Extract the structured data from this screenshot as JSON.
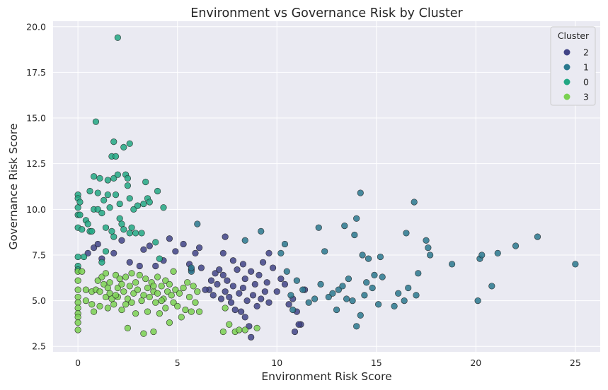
{
  "chart_data": {
    "type": "scatter",
    "title": "Environment vs Governance Risk by Cluster",
    "xlabel": "Environment Risk Score",
    "ylabel": "Governance Risk Score",
    "xlim": [
      -1.25,
      26.25
    ],
    "ylim": [
      2.2,
      20.3
    ],
    "xticks": [
      0,
      5,
      10,
      15,
      20,
      25
    ],
    "xtick_labels": [
      "0",
      "5",
      "10",
      "15",
      "20",
      "25"
    ],
    "yticks": [
      2.5,
      5.0,
      7.5,
      10.0,
      12.5,
      15.0,
      17.5,
      20.0
    ],
    "ytick_labels": [
      "2.5",
      "5.0",
      "7.5",
      "10.0",
      "12.5",
      "15.0",
      "17.5",
      "20.0"
    ],
    "grid": true,
    "background": "#eaeaf2",
    "legend": {
      "title": "Cluster",
      "position": "top-right"
    },
    "series": [
      {
        "name": "2",
        "color": "#414487",
        "points": [
          [
            0.5,
            7.6
          ],
          [
            0.8,
            7.9
          ],
          [
            1.0,
            8.1
          ],
          [
            1.2,
            7.3
          ],
          [
            1.8,
            7.6
          ],
          [
            2.2,
            8.3
          ],
          [
            2.6,
            7.1
          ],
          [
            3.1,
            6.9
          ],
          [
            3.3,
            7.8
          ],
          [
            3.6,
            8.0
          ],
          [
            3.9,
            6.9
          ],
          [
            4.3,
            7.2
          ],
          [
            4.6,
            8.4
          ],
          [
            4.9,
            7.7
          ],
          [
            5.3,
            8.1
          ],
          [
            5.6,
            7.0
          ],
          [
            5.9,
            7.6
          ],
          [
            6.2,
            6.8
          ],
          [
            6.6,
            5.6
          ],
          [
            6.8,
            5.3
          ],
          [
            6.9,
            6.5
          ],
          [
            7.0,
            5.9
          ],
          [
            7.2,
            5.1
          ],
          [
            7.3,
            6.4
          ],
          [
            7.4,
            5.5
          ],
          [
            7.5,
            6.1
          ],
          [
            7.6,
            5.2
          ],
          [
            7.7,
            4.9
          ],
          [
            7.8,
            5.8
          ],
          [
            7.9,
            4.5
          ],
          [
            8.0,
            6.7
          ],
          [
            8.1,
            5.4
          ],
          [
            8.2,
            4.4
          ],
          [
            8.3,
            5.7
          ],
          [
            8.4,
            6.2
          ],
          [
            8.5,
            5.0
          ],
          [
            8.6,
            3.6
          ],
          [
            8.7,
            6.6
          ],
          [
            8.8,
            5.3
          ],
          [
            8.9,
            5.9
          ],
          [
            9.0,
            4.7
          ],
          [
            9.1,
            6.4
          ],
          [
            9.2,
            5.1
          ],
          [
            9.3,
            7.1
          ],
          [
            9.4,
            5.5
          ],
          [
            9.5,
            6.0
          ],
          [
            9.6,
            4.9
          ],
          [
            9.8,
            6.8
          ],
          [
            10.0,
            5.5
          ],
          [
            10.2,
            6.2
          ],
          [
            10.4,
            5.9
          ],
          [
            10.6,
            4.8
          ],
          [
            10.8,
            5.1
          ],
          [
            11.0,
            4.4
          ],
          [
            11.2,
            3.7
          ],
          [
            11.4,
            5.6
          ],
          [
            10.9,
            3.3
          ],
          [
            11.1,
            3.7
          ],
          [
            8.7,
            3.0
          ],
          [
            8.4,
            4.1
          ],
          [
            6.7,
            6.1
          ],
          [
            7.1,
            6.7
          ],
          [
            7.8,
            7.2
          ],
          [
            8.3,
            7.0
          ],
          [
            9.6,
            7.6
          ],
          [
            6.1,
            7.9
          ],
          [
            7.4,
            8.5
          ],
          [
            7.3,
            7.6
          ],
          [
            5.7,
            6.7
          ],
          [
            6.4,
            5.6
          ]
        ]
      },
      {
        "name": "1",
        "color": "#2a788e",
        "points": [
          [
            5.7,
            6.6
          ],
          [
            5.7,
            6.8
          ],
          [
            6.0,
            9.2
          ],
          [
            8.4,
            8.3
          ],
          [
            9.2,
            8.8
          ],
          [
            10.2,
            7.6
          ],
          [
            10.4,
            8.1
          ],
          [
            10.5,
            6.6
          ],
          [
            10.7,
            5.3
          ],
          [
            11.0,
            6.1
          ],
          [
            11.3,
            5.6
          ],
          [
            11.6,
            4.9
          ],
          [
            11.9,
            5.1
          ],
          [
            12.1,
            9.0
          ],
          [
            12.2,
            5.9
          ],
          [
            12.4,
            7.7
          ],
          [
            12.6,
            5.2
          ],
          [
            12.8,
            5.4
          ],
          [
            13.0,
            4.5
          ],
          [
            13.1,
            5.6
          ],
          [
            13.3,
            5.8
          ],
          [
            13.4,
            9.1
          ],
          [
            13.5,
            5.1
          ],
          [
            13.6,
            6.2
          ],
          [
            13.8,
            5.0
          ],
          [
            13.9,
            8.6
          ],
          [
            14.0,
            9.5
          ],
          [
            14.2,
            10.9
          ],
          [
            14.3,
            7.5
          ],
          [
            14.4,
            5.3
          ],
          [
            14.5,
            6.0
          ],
          [
            14.6,
            7.3
          ],
          [
            14.8,
            5.7
          ],
          [
            14.9,
            6.4
          ],
          [
            15.1,
            4.8
          ],
          [
            15.2,
            7.4
          ],
          [
            15.3,
            6.3
          ],
          [
            15.9,
            4.7
          ],
          [
            16.1,
            5.4
          ],
          [
            16.4,
            5.0
          ],
          [
            16.5,
            8.7
          ],
          [
            16.6,
            5.7
          ],
          [
            16.9,
            10.4
          ],
          [
            17.0,
            5.3
          ],
          [
            17.1,
            6.5
          ],
          [
            17.5,
            8.3
          ],
          [
            17.6,
            7.9
          ],
          [
            17.7,
            7.5
          ],
          [
            18.8,
            7.0
          ],
          [
            20.1,
            5.0
          ],
          [
            20.2,
            7.3
          ],
          [
            20.3,
            7.5
          ],
          [
            20.8,
            5.8
          ],
          [
            21.1,
            7.6
          ],
          [
            22.0,
            8.0
          ],
          [
            23.1,
            8.5
          ],
          [
            25.0,
            7.0
          ],
          [
            14.0,
            3.6
          ],
          [
            14.2,
            4.2
          ],
          [
            10.8,
            4.5
          ]
        ]
      },
      {
        "name": "0",
        "color": "#22a884",
        "points": [
          [
            0.0,
            10.8
          ],
          [
            0.0,
            10.6
          ],
          [
            0.0,
            10.1
          ],
          [
            0.0,
            9.7
          ],
          [
            0.0,
            9.0
          ],
          [
            0.0,
            7.4
          ],
          [
            0.0,
            6.9
          ],
          [
            0.0,
            6.7
          ],
          [
            0.1,
            10.4
          ],
          [
            0.1,
            9.7
          ],
          [
            0.2,
            8.9
          ],
          [
            0.3,
            7.4
          ],
          [
            0.4,
            9.4
          ],
          [
            0.5,
            9.2
          ],
          [
            0.6,
            8.8
          ],
          [
            0.6,
            11.0
          ],
          [
            0.8,
            11.8
          ],
          [
            0.8,
            10.0
          ],
          [
            0.9,
            14.8
          ],
          [
            1.0,
            10.9
          ],
          [
            1.0,
            10.0
          ],
          [
            1.1,
            11.7
          ],
          [
            1.2,
            9.8
          ],
          [
            1.3,
            10.5
          ],
          [
            1.4,
            9.0
          ],
          [
            1.5,
            11.6
          ],
          [
            1.5,
            10.8
          ],
          [
            1.6,
            10.1
          ],
          [
            1.7,
            12.9
          ],
          [
            1.8,
            13.7
          ],
          [
            1.8,
            11.7
          ],
          [
            1.9,
            12.9
          ],
          [
            1.9,
            10.8
          ],
          [
            2.0,
            19.4
          ],
          [
            2.0,
            11.9
          ],
          [
            2.1,
            10.3
          ],
          [
            2.1,
            9.5
          ],
          [
            2.2,
            9.2
          ],
          [
            2.3,
            13.4
          ],
          [
            2.4,
            11.9
          ],
          [
            2.5,
            11.7
          ],
          [
            2.5,
            11.3
          ],
          [
            2.6,
            13.6
          ],
          [
            2.6,
            10.6
          ],
          [
            2.7,
            9.0
          ],
          [
            2.8,
            10.0
          ],
          [
            2.9,
            8.7
          ],
          [
            3.0,
            10.2
          ],
          [
            3.2,
            8.7
          ],
          [
            3.3,
            10.3
          ],
          [
            3.4,
            11.5
          ],
          [
            3.5,
            10.6
          ],
          [
            3.6,
            10.4
          ],
          [
            3.9,
            8.2
          ],
          [
            4.0,
            11.0
          ],
          [
            4.3,
            10.1
          ],
          [
            4.1,
            7.3
          ],
          [
            1.4,
            7.7
          ],
          [
            1.8,
            8.5
          ],
          [
            2.3,
            8.9
          ],
          [
            2.6,
            8.7
          ],
          [
            0.7,
            8.8
          ],
          [
            1.7,
            8.8
          ],
          [
            1.2,
            7.1
          ]
        ]
      },
      {
        "name": "3",
        "color": "#7ad151",
        "points": [
          [
            0.0,
            6.6
          ],
          [
            0.0,
            6.1
          ],
          [
            0.0,
            5.6
          ],
          [
            0.0,
            5.2
          ],
          [
            0.0,
            4.9
          ],
          [
            0.0,
            4.6
          ],
          [
            0.0,
            4.3
          ],
          [
            0.0,
            4.1
          ],
          [
            0.0,
            3.8
          ],
          [
            0.0,
            3.4
          ],
          [
            0.2,
            6.6
          ],
          [
            0.4,
            5.6
          ],
          [
            0.7,
            5.5
          ],
          [
            0.7,
            4.8
          ],
          [
            0.8,
            4.4
          ],
          [
            0.9,
            5.6
          ],
          [
            1.0,
            6.1
          ],
          [
            1.1,
            5.5
          ],
          [
            1.1,
            4.7
          ],
          [
            1.2,
            6.3
          ],
          [
            1.3,
            5.9
          ],
          [
            1.4,
            5.2
          ],
          [
            1.4,
            6.5
          ],
          [
            1.5,
            5.7
          ],
          [
            1.5,
            4.6
          ],
          [
            1.6,
            5.4
          ],
          [
            1.6,
            6.0
          ],
          [
            1.7,
            5.1
          ],
          [
            1.8,
            4.8
          ],
          [
            1.9,
            6.4
          ],
          [
            2.0,
            5.7
          ],
          [
            2.0,
            5.2
          ],
          [
            2.1,
            6.2
          ],
          [
            2.2,
            4.5
          ],
          [
            2.2,
            5.9
          ],
          [
            2.3,
            5.5
          ],
          [
            2.4,
            6.3
          ],
          [
            2.5,
            5.1
          ],
          [
            2.5,
            3.5
          ],
          [
            2.6,
            5.8
          ],
          [
            2.7,
            6.5
          ],
          [
            2.7,
            4.9
          ],
          [
            2.8,
            5.4
          ],
          [
            2.9,
            6.0
          ],
          [
            2.9,
            4.3
          ],
          [
            3.0,
            5.6
          ],
          [
            3.1,
            6.4
          ],
          [
            3.2,
            5.0
          ],
          [
            3.3,
            3.2
          ],
          [
            3.3,
            5.3
          ],
          [
            3.4,
            6.2
          ],
          [
            3.5,
            5.7
          ],
          [
            3.5,
            4.4
          ],
          [
            3.6,
            5.2
          ],
          [
            3.7,
            6.0
          ],
          [
            3.8,
            5.5
          ],
          [
            3.8,
            3.3
          ],
          [
            3.9,
            4.9
          ],
          [
            4.0,
            6.3
          ],
          [
            4.0,
            5.4
          ],
          [
            4.1,
            4.3
          ],
          [
            4.2,
            5.8
          ],
          [
            4.3,
            5.1
          ],
          [
            4.4,
            6.1
          ],
          [
            4.4,
            4.6
          ],
          [
            4.5,
            5.5
          ],
          [
            4.6,
            5.9
          ],
          [
            4.6,
            3.8
          ],
          [
            4.7,
            5.3
          ],
          [
            4.8,
            6.6
          ],
          [
            4.8,
            4.9
          ],
          [
            4.9,
            5.6
          ],
          [
            5.0,
            4.7
          ],
          [
            5.1,
            5.4
          ],
          [
            5.2,
            4.1
          ],
          [
            5.3,
            5.7
          ],
          [
            5.4,
            4.5
          ],
          [
            5.5,
            6.0
          ],
          [
            5.6,
            5.2
          ],
          [
            5.7,
            4.4
          ],
          [
            5.8,
            5.8
          ],
          [
            5.9,
            4.9
          ],
          [
            6.0,
            5.5
          ],
          [
            6.1,
            4.4
          ],
          [
            7.3,
            3.3
          ],
          [
            7.4,
            4.6
          ],
          [
            7.6,
            3.7
          ],
          [
            7.9,
            3.3
          ],
          [
            8.1,
            3.4
          ],
          [
            8.4,
            3.4
          ],
          [
            9.0,
            3.5
          ],
          [
            3.8,
            5.8
          ],
          [
            4.2,
            5.0
          ],
          [
            0.4,
            5.0
          ],
          [
            1.9,
            5.3
          ],
          [
            2.4,
            4.8
          ]
        ]
      }
    ]
  }
}
